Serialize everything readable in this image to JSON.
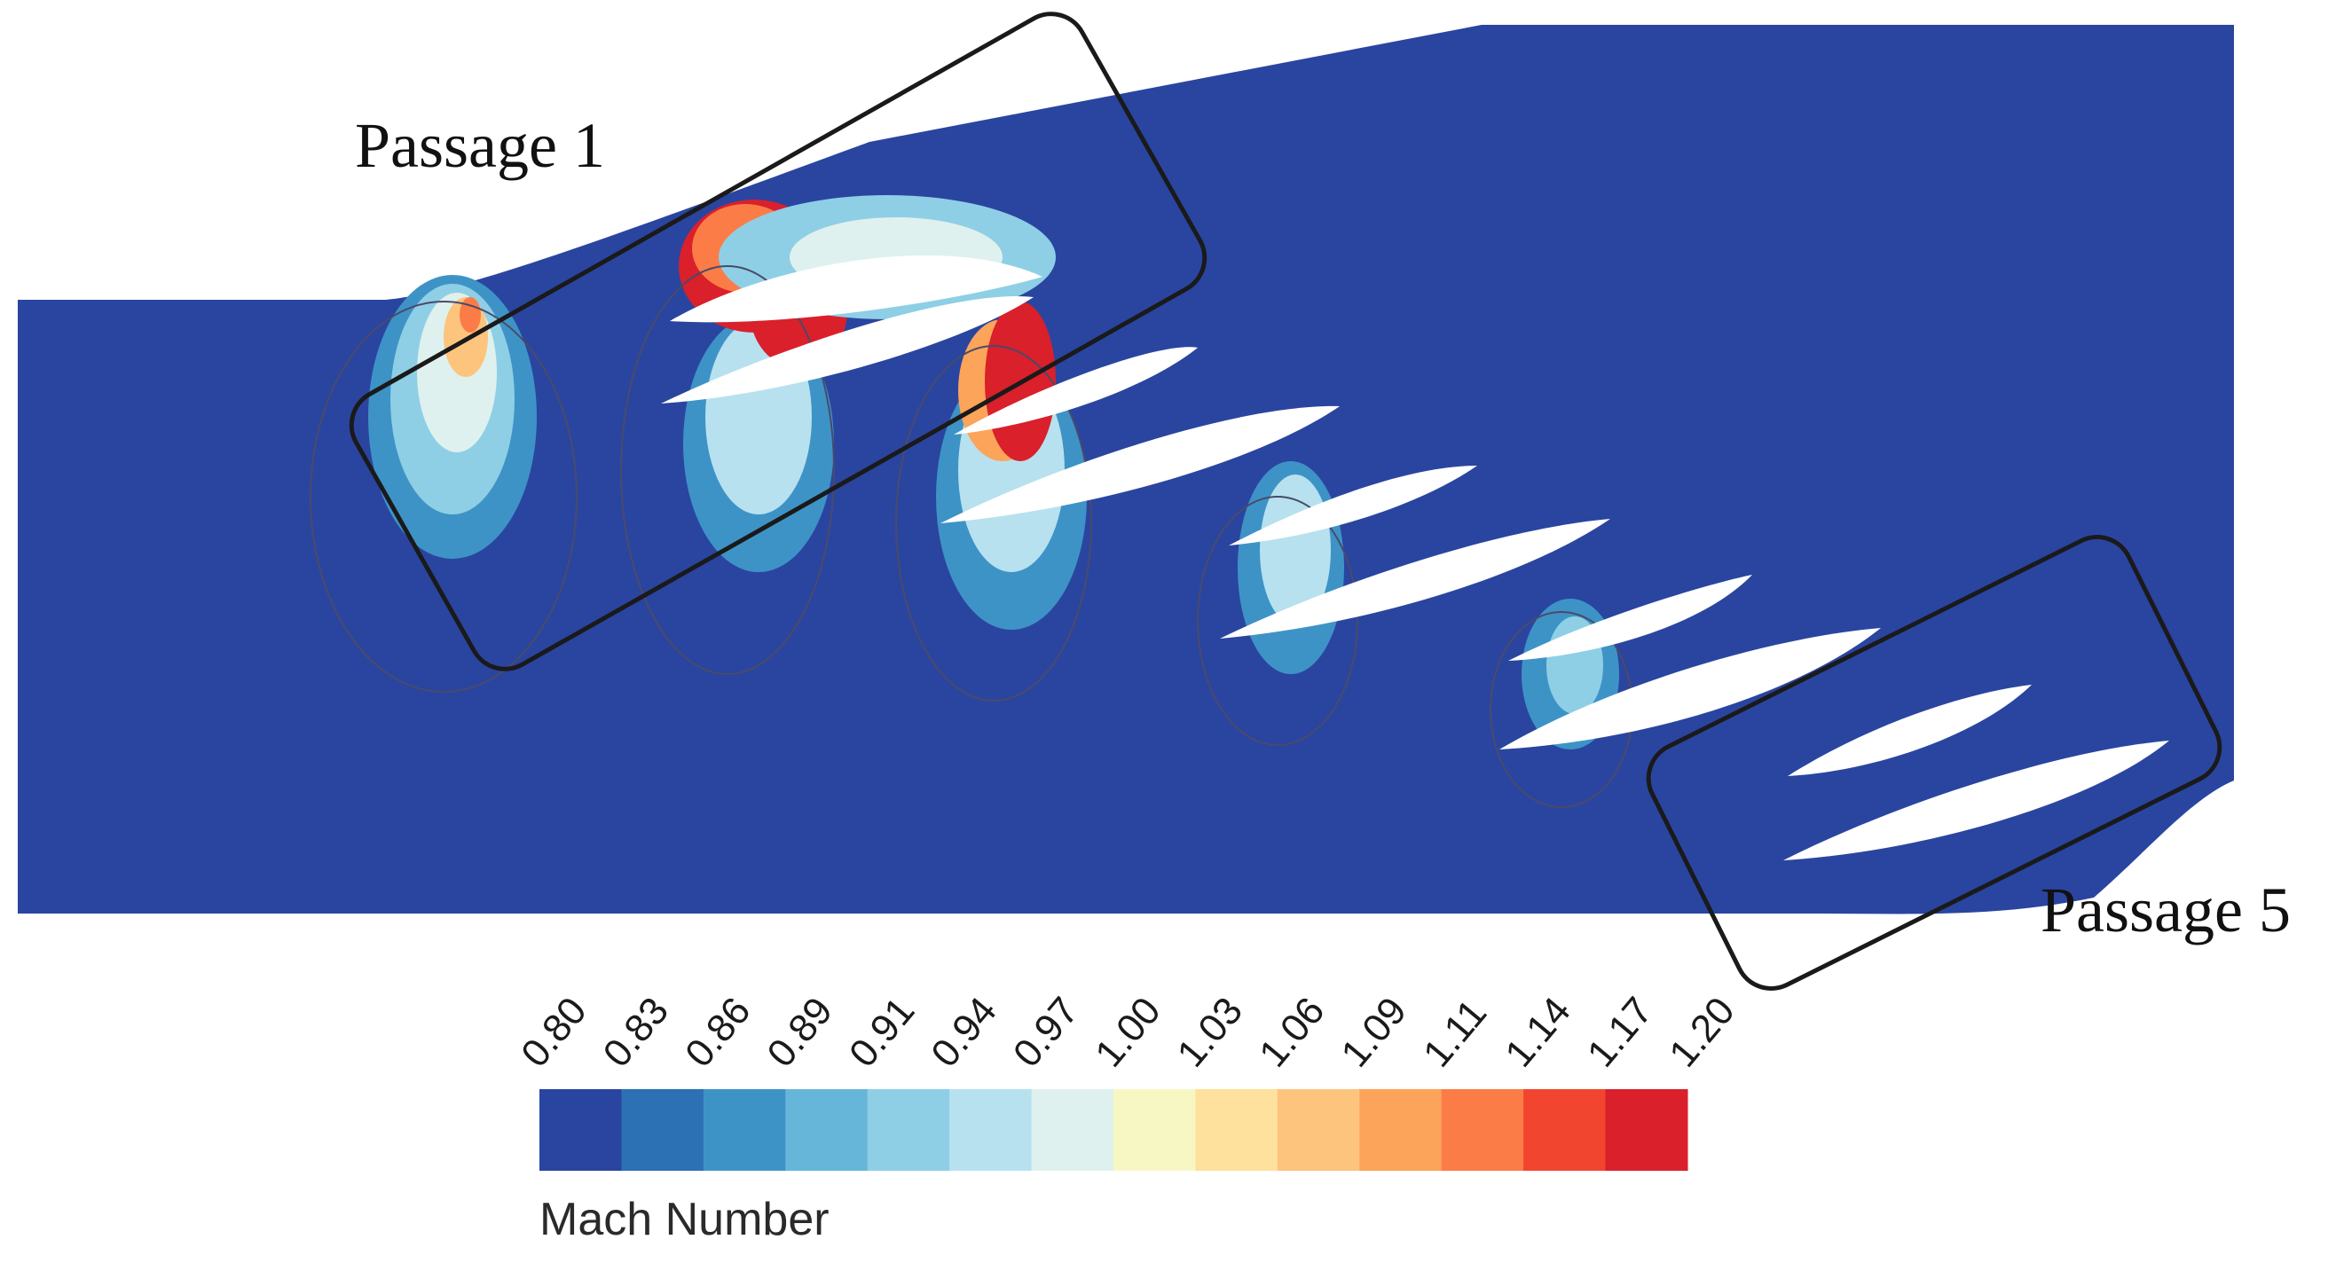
{
  "annotations": {
    "passage_1": "Passage 1",
    "passage_5": "Passage 5"
  },
  "colorbar": {
    "title": "Mach Number",
    "ticks": [
      "0.80",
      "0.83",
      "0.86",
      "0.89",
      "0.91",
      "0.94",
      "0.97",
      "1.00",
      "1.03",
      "1.06",
      "1.09",
      "1.11",
      "1.14",
      "1.17",
      "1.20"
    ],
    "colors": [
      "#2a45a0",
      "#2b71b3",
      "#3e93c6",
      "#66b6da",
      "#8ecfe6",
      "#b7e1ef",
      "#dff1ee",
      "#f7f7c4",
      "#fde19c",
      "#fdc47d",
      "#fca45a",
      "#fb7c46",
      "#f1452f",
      "#d9202b"
    ]
  },
  "colors": {
    "field": "#2a45a0",
    "blade": "#ffffff",
    "outline": "#1a1a1a"
  }
}
